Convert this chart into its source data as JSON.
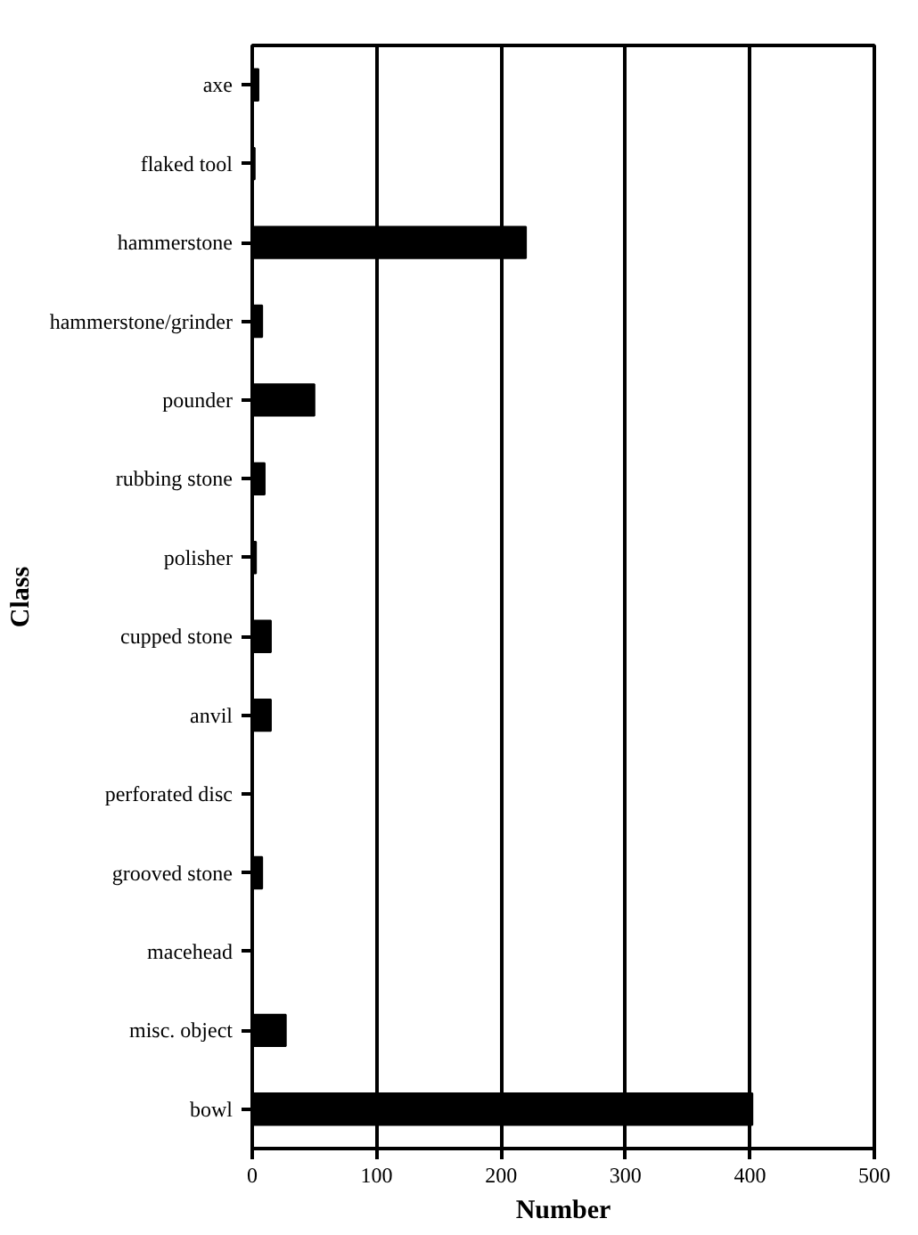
{
  "chart_data": {
    "type": "bar",
    "orientation": "horizontal",
    "xlabel": "Number",
    "ylabel": "Class",
    "categories": [
      "axe",
      "flaked tool",
      "hammerstone",
      "hammerstone/grinder",
      "pounder",
      "rubbing stone",
      "polisher",
      "cupped stone",
      "anvil",
      "perforated disc",
      "grooved stone",
      "macehead",
      "misc. object",
      "bowl"
    ],
    "values": [
      5,
      2,
      220,
      8,
      50,
      10,
      3,
      15,
      15,
      null,
      8,
      null,
      27,
      402
    ],
    "color": "#000000",
    "xlim": [
      0,
      500
    ],
    "xticks": [
      0,
      100,
      200,
      300,
      400,
      500
    ],
    "grid": "x"
  }
}
